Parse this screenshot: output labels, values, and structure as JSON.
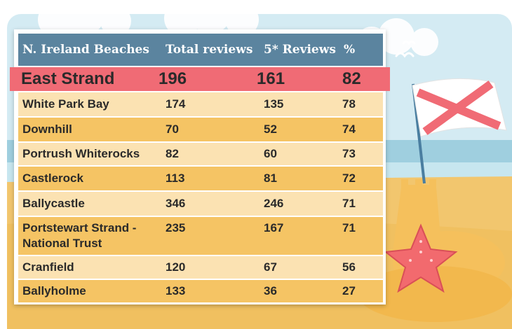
{
  "table": {
    "columns": [
      "N. Ireland Beaches",
      "Total reviews",
      "5* Reviews",
      "%"
    ],
    "highlight": {
      "beach": "East Strand",
      "total": "196",
      "five_star": "161",
      "pct": "82"
    },
    "rows": [
      {
        "beach": "White Park Bay",
        "total": "174",
        "five_star": "135",
        "pct": "78"
      },
      {
        "beach": "Downhill",
        "total": "70",
        "five_star": "52",
        "pct": "74"
      },
      {
        "beach": "Portrush Whiterocks",
        "total": "82",
        "five_star": "60",
        "pct": "73"
      },
      {
        "beach": "Castlerock",
        "total": "113",
        "five_star": "81",
        "pct": "72"
      },
      {
        "beach": "Ballycastle",
        "total": "346",
        "five_star": "246",
        "pct": "71"
      },
      {
        "beach": "Portstewart Strand -",
        "beach_line2": "National Trust",
        "total": "235",
        "five_star": "167",
        "pct": "71"
      },
      {
        "beach": "Cranfield",
        "total": "120",
        "five_star": "67",
        "pct": "56"
      },
      {
        "beach": "Ballyholme",
        "total": "133",
        "five_star": "36",
        "pct": "27"
      }
    ]
  },
  "chart_data": {
    "type": "table",
    "columns": [
      "N. Ireland Beaches",
      "Total reviews",
      "5* Reviews",
      "%"
    ],
    "rows": [
      [
        "East Strand",
        196,
        161,
        82
      ],
      [
        "White Park Bay",
        174,
        135,
        78
      ],
      [
        "Downhill",
        70,
        52,
        74
      ],
      [
        "Portrush Whiterocks",
        82,
        60,
        73
      ],
      [
        "Castlerock",
        113,
        81,
        72
      ],
      [
        "Ballycastle",
        346,
        246,
        71
      ],
      [
        "Portstewart Strand - National Trust",
        235,
        167,
        71
      ],
      [
        "Cranfield",
        120,
        67,
        56
      ],
      [
        "Ballyholme",
        133,
        36,
        27
      ]
    ]
  },
  "colors": {
    "header": "#5b849f",
    "highlight": "#f06b75",
    "row_light": "#fbe2b2",
    "row_dark": "#f5c464",
    "sky": "#cfe8f2",
    "sand": "#f2c46a",
    "sea": "#8fc4d6"
  },
  "icons": [
    "cloud-icon",
    "seagull-icon",
    "flag-icon",
    "sandcastle-icon",
    "starfish-icon"
  ]
}
